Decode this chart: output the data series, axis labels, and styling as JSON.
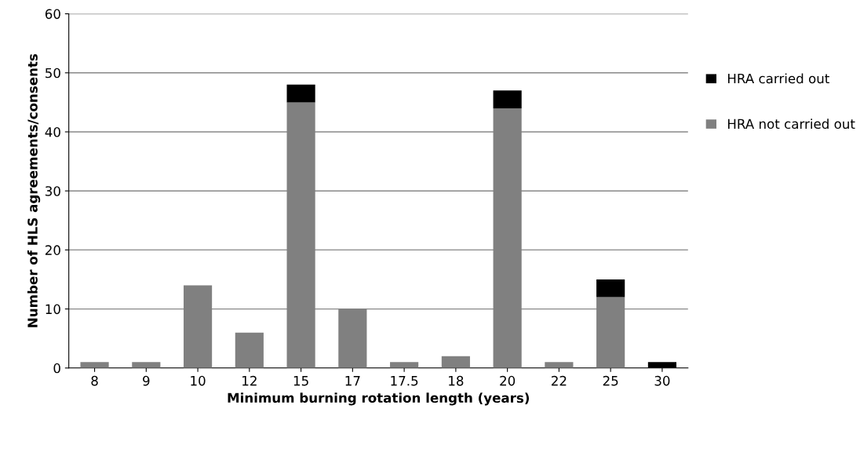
{
  "chart_data": {
    "type": "bar",
    "stacked": true,
    "xlabel": "Minimum burning rotation length (years)",
    "ylabel": "Number of HLS agreements/consents",
    "categories": [
      "8",
      "9",
      "10",
      "12",
      "15",
      "17",
      "17.5",
      "18",
      "20",
      "22",
      "25",
      "30"
    ],
    "series": [
      {
        "name": "HRA not carried out",
        "color": "#808080",
        "values": [
          1,
          1,
          14,
          6,
          45,
          10,
          1,
          2,
          44,
          1,
          12,
          0
        ]
      },
      {
        "name": "HRA carried out",
        "color": "#000000",
        "values": [
          0,
          0,
          0,
          0,
          3,
          0,
          0,
          0,
          3,
          0,
          3,
          1
        ]
      }
    ],
    "ylim": [
      0,
      60
    ],
    "yticks": [
      0,
      10,
      20,
      30,
      40,
      50,
      60
    ],
    "grid": "y",
    "legend": "right"
  }
}
